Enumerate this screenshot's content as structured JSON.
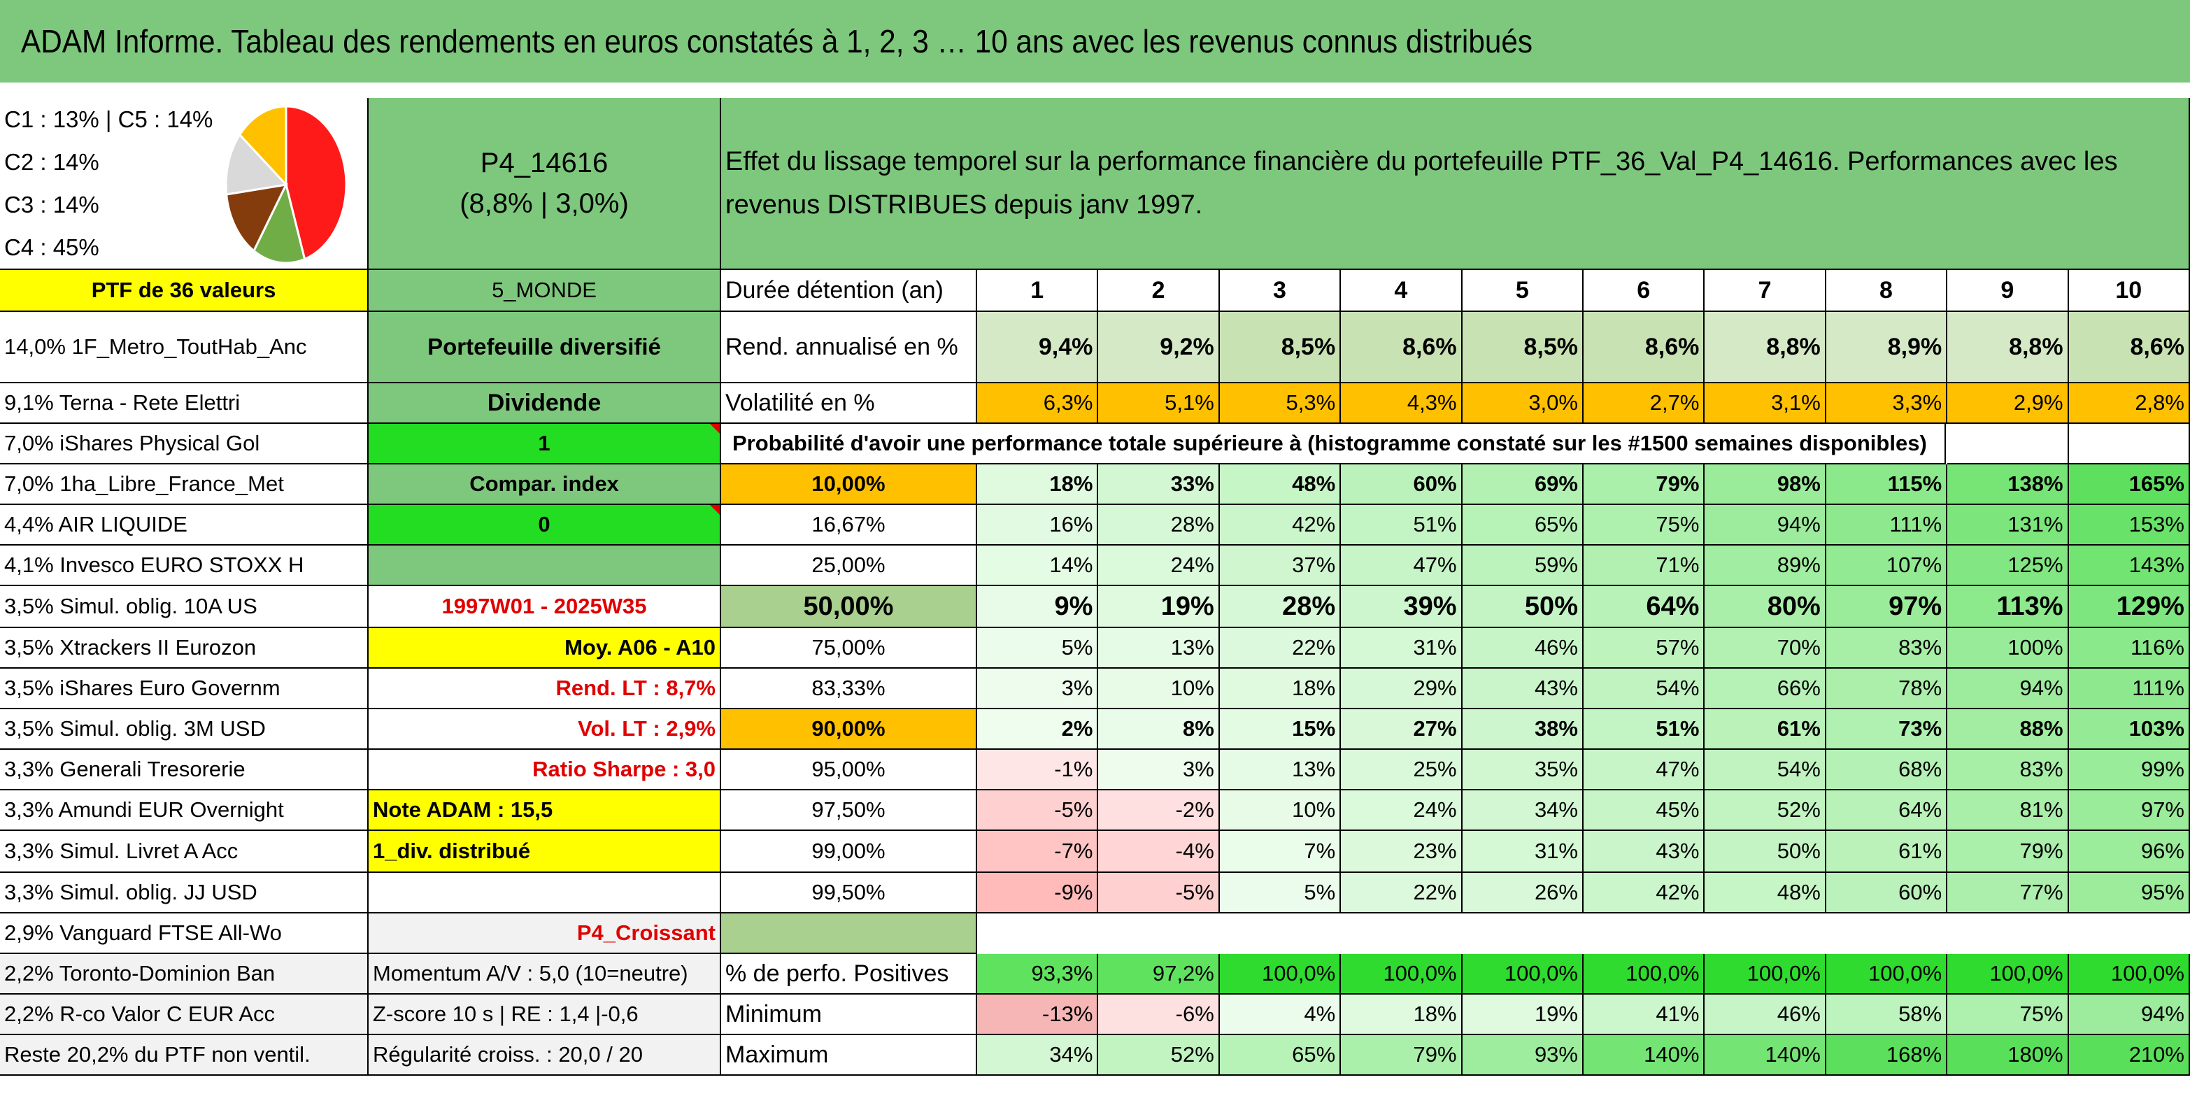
{
  "title": "ADAM Informe. Tableau des rendements en euros constatés à 1, 2, 3 … 10 ans avec les revenus connus distribués",
  "legend": [
    "C1 : 13% | C5 : 14%",
    "C2 : 14%",
    "C3 : 14%",
    "C4 : 45%"
  ],
  "pie": {
    "slices": [
      {
        "value": 45,
        "color": "#ff1a1a"
      },
      {
        "value": 14,
        "color": "#70ad47"
      },
      {
        "value": 14,
        "color": "#843c0c"
      },
      {
        "value": 13,
        "color": "#d9d9d9"
      },
      {
        "value": 14,
        "color": "#ffc000"
      }
    ]
  },
  "portfolio": {
    "code": "P4_14616",
    "perf": "(8,8% | 3,0%)",
    "description_line1": "Effet du lissage temporel sur la performance financière du portefeuille PTF_36_Val_P4_14616. Performances avec les",
    "description_line2": "revenus DISTRIBUES depuis janv 1997.",
    "count_label": "PTF de 36 valeurs",
    "zone": "5_MONDE",
    "type": "Portefeuille diversifié",
    "style": "Dividende",
    "flag_1": "1",
    "compar": "Compar. index",
    "flag_0": "0",
    "period": "1997W01 - 2025W35",
    "moy": "Moy. A06 - A10",
    "rend_lt": "Rend. LT : 8,7%",
    "vol_lt": "Vol. LT : 2,9%",
    "sharpe": "Ratio Sharpe : 3,0",
    "note": "Note ADAM : 15,5",
    "div": "1_div. distribué",
    "trend": "P4_Croissant",
    "momentum": "Momentum A/V : 5,0 (10=neutre)",
    "zscore": "Z-score 10 s | RE : 1,4 |-0,6",
    "regularity": "Régularité croiss. : 20,0 / 20"
  },
  "holdings": [
    "14,0% 1F_Metro_ToutHab_Anc",
    "9,1% Terna - Rete Elettri",
    "7,0% iShares Physical Gol",
    "7,0% 1ha_Libre_France_Met",
    "4,4% AIR LIQUIDE",
    "4,1% Invesco EURO STOXX H",
    "3,5% Simul. oblig. 10A US",
    "3,5% Xtrackers II Eurozon",
    "3,5% iShares Euro Governm",
    "3,5% Simul. oblig. 3M USD",
    "3,3% Generali Tresorerie",
    "3,3% Amundi EUR Overnight",
    "3,3% Simul. Livret A Acc",
    "3,3% Simul. oblig. JJ USD",
    "2,9% Vanguard FTSE All-Wo",
    "2,2% Toronto-Dominion Ban",
    "2,2% R-co Valor C EUR Acc",
    "Reste 20,2% du PTF non ventil."
  ],
  "table": {
    "duration_label": "Durée détention (an)",
    "years": [
      "1",
      "2",
      "3",
      "4",
      "5",
      "6",
      "7",
      "8",
      "9",
      "10"
    ],
    "rend_label": "Rend. annualisé en %",
    "rend": [
      "9,4%",
      "9,2%",
      "8,5%",
      "8,6%",
      "8,5%",
      "8,6%",
      "8,8%",
      "8,9%",
      "8,8%",
      "8,6%"
    ],
    "vol_label": "Volatilité en %",
    "vol": [
      "6,3%",
      "5,1%",
      "5,3%",
      "4,3%",
      "3,0%",
      "2,7%",
      "3,1%",
      "3,3%",
      "2,9%",
      "2,8%"
    ],
    "prob_header": "Probabilité d'avoir une performance totale supérieure à (histogramme constaté sur les #1500 semaines disponibles)",
    "prob_rows": [
      {
        "p": "10,00%",
        "v": [
          "18%",
          "33%",
          "48%",
          "60%",
          "69%",
          "79%",
          "98%",
          "115%",
          "138%",
          "165%"
        ]
      },
      {
        "p": "16,67%",
        "v": [
          "16%",
          "28%",
          "42%",
          "51%",
          "65%",
          "75%",
          "94%",
          "111%",
          "131%",
          "153%"
        ]
      },
      {
        "p": "25,00%",
        "v": [
          "14%",
          "24%",
          "37%",
          "47%",
          "59%",
          "71%",
          "89%",
          "107%",
          "125%",
          "143%"
        ]
      },
      {
        "p": "50,00%",
        "v": [
          "9%",
          "19%",
          "28%",
          "39%",
          "50%",
          "64%",
          "80%",
          "97%",
          "113%",
          "129%"
        ]
      },
      {
        "p": "75,00%",
        "v": [
          "5%",
          "13%",
          "22%",
          "31%",
          "46%",
          "57%",
          "70%",
          "83%",
          "100%",
          "116%"
        ]
      },
      {
        "p": "83,33%",
        "v": [
          "3%",
          "10%",
          "18%",
          "29%",
          "43%",
          "54%",
          "66%",
          "78%",
          "94%",
          "111%"
        ]
      },
      {
        "p": "90,00%",
        "v": [
          "2%",
          "8%",
          "15%",
          "27%",
          "38%",
          "51%",
          "61%",
          "73%",
          "88%",
          "103%"
        ]
      },
      {
        "p": "95,00%",
        "v": [
          "-1%",
          "3%",
          "13%",
          "25%",
          "35%",
          "47%",
          "54%",
          "68%",
          "83%",
          "99%"
        ]
      },
      {
        "p": "97,50%",
        "v": [
          "-5%",
          "-2%",
          "10%",
          "24%",
          "34%",
          "45%",
          "52%",
          "64%",
          "81%",
          "97%"
        ]
      },
      {
        "p": "99,00%",
        "v": [
          "-7%",
          "-4%",
          "7%",
          "23%",
          "31%",
          "43%",
          "50%",
          "61%",
          "79%",
          "96%"
        ]
      },
      {
        "p": "99,50%",
        "v": [
          "-9%",
          "-5%",
          "5%",
          "22%",
          "26%",
          "42%",
          "48%",
          "60%",
          "77%",
          "95%"
        ]
      }
    ],
    "pos_label": "% de perfo. Positives",
    "pos": [
      "93,3%",
      "97,2%",
      "100,0%",
      "100,0%",
      "100,0%",
      "100,0%",
      "100,0%",
      "100,0%",
      "100,0%",
      "100,0%"
    ],
    "min_label": "Minimum",
    "min": [
      "-13%",
      "-6%",
      "4%",
      "18%",
      "19%",
      "41%",
      "46%",
      "58%",
      "75%",
      "94%"
    ],
    "max_label": "Maximum",
    "max": [
      "34%",
      "52%",
      "65%",
      "79%",
      "93%",
      "140%",
      "140%",
      "168%",
      "180%",
      "210%"
    ]
  }
}
